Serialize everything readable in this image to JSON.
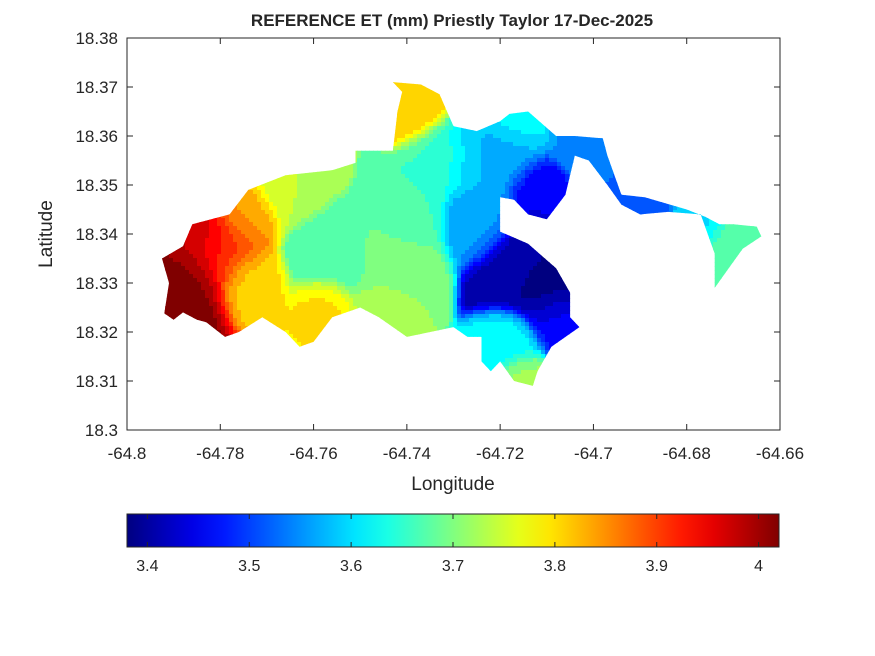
{
  "chart_data": {
    "type": "heatmap",
    "title": "REFERENCE ET (mm) Priestly Taylor 17-Dec-2025",
    "xlabel": "Longitude",
    "ylabel": "Latitude",
    "xlim": [
      -64.8,
      -64.66
    ],
    "ylim": [
      18.3,
      18.38
    ],
    "x_ticks": [
      -64.8,
      -64.78,
      -64.76,
      -64.74,
      -64.72,
      -64.7,
      -64.68,
      -64.66
    ],
    "x_tick_labels": [
      "-64.8",
      "-64.78",
      "-64.76",
      "-64.74",
      "-64.72",
      "-64.7",
      "-64.68",
      "-64.66"
    ],
    "y_ticks": [
      18.3,
      18.31,
      18.32,
      18.33,
      18.34,
      18.35,
      18.36,
      18.37,
      18.38
    ],
    "y_tick_labels": [
      "18.3",
      "18.31",
      "18.32",
      "18.33",
      "18.34",
      "18.35",
      "18.36",
      "18.37",
      "18.38"
    ],
    "grid": false,
    "colormap": "jet",
    "colorbar": {
      "location": "below",
      "limits": [
        3.38,
        4.02
      ],
      "ticks": [
        3.4,
        3.5,
        3.6,
        3.7,
        3.8,
        3.9,
        4.0
      ],
      "tick_labels": [
        "3.4",
        "3.5",
        "3.6",
        "3.7",
        "3.8",
        "3.9",
        "4"
      ]
    },
    "outline": [
      [
        -64.792,
        18.3238
      ],
      [
        -64.791,
        18.33
      ],
      [
        -64.7925,
        18.335
      ],
      [
        -64.788,
        18.3375
      ],
      [
        -64.786,
        18.342
      ],
      [
        -64.778,
        18.344
      ],
      [
        -64.774,
        18.349
      ],
      [
        -64.766,
        18.352
      ],
      [
        -64.756,
        18.353
      ],
      [
        -64.751,
        18.3545
      ],
      [
        -64.751,
        18.357
      ],
      [
        -64.743,
        18.357
      ],
      [
        -64.742,
        18.365
      ],
      [
        -64.741,
        18.369
      ],
      [
        -64.743,
        18.371
      ],
      [
        -64.737,
        18.3705
      ],
      [
        -64.733,
        18.3685
      ],
      [
        -64.73,
        18.362
      ],
      [
        -64.725,
        18.361
      ],
      [
        -64.72,
        18.363
      ],
      [
        -64.718,
        18.3645
      ],
      [
        -64.714,
        18.365
      ],
      [
        -64.708,
        18.36
      ],
      [
        -64.704,
        18.36
      ],
      [
        -64.698,
        18.3595
      ],
      [
        -64.697,
        18.356
      ],
      [
        -64.694,
        18.348
      ],
      [
        -64.689,
        18.3475
      ],
      [
        -64.68,
        18.345
      ],
      [
        -64.676,
        18.3435
      ],
      [
        -64.673,
        18.342
      ],
      [
        -64.67,
        18.342
      ],
      [
        -64.665,
        18.3415
      ],
      [
        -64.664,
        18.3395
      ],
      [
        -64.668,
        18.337
      ],
      [
        -64.671,
        18.333
      ],
      [
        -64.674,
        18.329
      ],
      [
        -64.674,
        18.336
      ],
      [
        -64.677,
        18.344
      ],
      [
        -64.684,
        18.3445
      ],
      [
        -64.69,
        18.344
      ],
      [
        -64.694,
        18.346
      ],
      [
        -64.697,
        18.35
      ],
      [
        -64.701,
        18.355
      ],
      [
        -64.704,
        18.356
      ],
      [
        -64.706,
        18.348
      ],
      [
        -64.71,
        18.343
      ],
      [
        -64.714,
        18.344
      ],
      [
        -64.717,
        18.347
      ],
      [
        -64.72,
        18.3475
      ],
      [
        -64.72,
        18.3405
      ],
      [
        -64.714,
        18.338
      ],
      [
        -64.708,
        18.333
      ],
      [
        -64.705,
        18.328
      ],
      [
        -64.705,
        18.323
      ],
      [
        -64.703,
        18.321
      ],
      [
        -64.709,
        18.317
      ],
      [
        -64.712,
        18.312
      ],
      [
        -64.713,
        18.309
      ],
      [
        -64.717,
        18.31
      ],
      [
        -64.72,
        18.314
      ],
      [
        -64.722,
        18.312
      ],
      [
        -64.724,
        18.314
      ],
      [
        -64.724,
        18.319
      ],
      [
        -64.727,
        18.319
      ],
      [
        -64.73,
        18.321
      ],
      [
        -64.74,
        18.319
      ],
      [
        -64.746,
        18.323
      ],
      [
        -64.75,
        18.325
      ],
      [
        -64.756,
        18.323
      ],
      [
        -64.76,
        18.318
      ],
      [
        -64.763,
        18.317
      ],
      [
        -64.766,
        18.32
      ],
      [
        -64.771,
        18.323
      ],
      [
        -64.776,
        18.32
      ],
      [
        -64.779,
        18.319
      ],
      [
        -64.783,
        18.322
      ],
      [
        -64.785,
        18.3225
      ],
      [
        -64.788,
        18.324
      ],
      [
        -64.79,
        18.3225
      ],
      [
        -64.792,
        18.3238
      ]
    ],
    "hotspots": [
      {
        "lon": -64.788,
        "lat": 18.33,
        "value": 4.02,
        "radius": 0.0065
      },
      {
        "lon": -64.784,
        "lat": 18.339,
        "value": 3.97,
        "radius": 0.0055
      },
      {
        "lon": -64.779,
        "lat": 18.336,
        "value": 3.9,
        "radius": 0.005
      },
      {
        "lon": -64.775,
        "lat": 18.344,
        "value": 3.84,
        "radius": 0.0045
      },
      {
        "lon": -64.774,
        "lat": 18.33,
        "value": 3.8,
        "radius": 0.0045
      },
      {
        "lon": -64.765,
        "lat": 18.35,
        "value": 3.74,
        "radius": 0.005
      },
      {
        "lon": -64.756,
        "lat": 18.336,
        "value": 3.66,
        "radius": 0.0055
      },
      {
        "lon": -64.758,
        "lat": 18.326,
        "value": 3.8,
        "radius": 0.0035
      },
      {
        "lon": -64.743,
        "lat": 18.335,
        "value": 3.7,
        "radius": 0.006
      },
      {
        "lon": -64.74,
        "lat": 18.344,
        "value": 3.66,
        "radius": 0.005
      },
      {
        "lon": -64.745,
        "lat": 18.324,
        "value": 3.74,
        "radius": 0.004
      },
      {
        "lon": -64.738,
        "lat": 18.366,
        "value": 3.82,
        "radius": 0.004
      },
      {
        "lon": -64.732,
        "lat": 18.356,
        "value": 3.66,
        "radius": 0.0045
      },
      {
        "lon": -64.726,
        "lat": 18.356,
        "value": 3.58,
        "radius": 0.005
      },
      {
        "lon": -64.718,
        "lat": 18.356,
        "value": 3.56,
        "radius": 0.0045
      },
      {
        "lon": -64.712,
        "lat": 18.35,
        "value": 3.45,
        "radius": 0.0035
      },
      {
        "lon": -64.716,
        "lat": 18.362,
        "value": 3.62,
        "radius": 0.004
      },
      {
        "lon": -64.725,
        "lat": 18.342,
        "value": 3.56,
        "radius": 0.0045
      },
      {
        "lon": -64.716,
        "lat": 18.333,
        "value": 3.4,
        "radius": 0.0055
      },
      {
        "lon": -64.71,
        "lat": 18.329,
        "value": 3.38,
        "radius": 0.005
      },
      {
        "lon": -64.708,
        "lat": 18.323,
        "value": 3.46,
        "radius": 0.004
      },
      {
        "lon": -64.718,
        "lat": 18.318,
        "value": 3.62,
        "radius": 0.004
      },
      {
        "lon": -64.715,
        "lat": 18.311,
        "value": 3.72,
        "radius": 0.003
      },
      {
        "lon": -64.703,
        "lat": 18.359,
        "value": 3.55,
        "radius": 0.004
      },
      {
        "lon": -64.69,
        "lat": 18.347,
        "value": 3.52,
        "radius": 0.0035
      },
      {
        "lon": -64.676,
        "lat": 18.343,
        "value": 3.6,
        "radius": 0.0035
      },
      {
        "lon": -64.67,
        "lat": 18.339,
        "value": 3.68,
        "radius": 0.004
      }
    ]
  }
}
